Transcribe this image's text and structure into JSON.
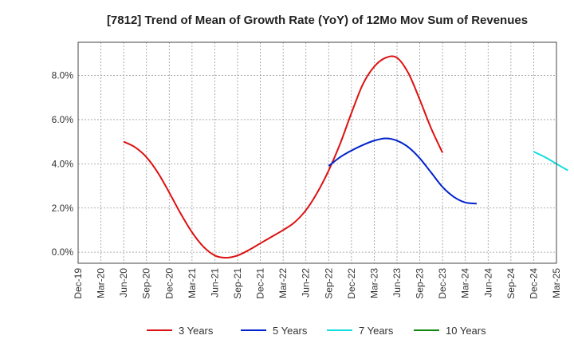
{
  "chart_data": {
    "type": "line",
    "title": "[7812]  Trend of Mean of Growth Rate (YoY) of 12Mo Mov Sum of Revenues",
    "xlabel": "",
    "ylabel": "",
    "ylim": [
      -0.5,
      9.5
    ],
    "yticks": [
      0,
      2,
      4,
      6,
      8
    ],
    "ytick_labels": [
      "0.0%",
      "2.0%",
      "4.0%",
      "6.0%",
      "8.0%"
    ],
    "x_tick_labels": [
      "Dec-19",
      "Mar-20",
      "Jun-20",
      "Sep-20",
      "Dec-20",
      "Mar-21",
      "Jun-21",
      "Sep-21",
      "Dec-21",
      "Mar-22",
      "Jun-22",
      "Sep-22",
      "Dec-22",
      "Mar-23",
      "Jun-23",
      "Sep-23",
      "Dec-23",
      "Mar-24",
      "Jun-24",
      "Sep-24",
      "Dec-24",
      "Mar-25"
    ],
    "grid": true,
    "legend_position": "bottom",
    "series": [
      {
        "name": "3 Years",
        "color": "#dd1111",
        "start_index": 2,
        "values": [
          5.0,
          4.75,
          4.3,
          3.6,
          2.7,
          1.75,
          0.9,
          0.25,
          -0.15,
          -0.25,
          -0.15,
          0.1,
          0.4,
          0.7,
          1.0,
          1.35,
          1.9,
          2.7,
          3.7,
          4.9,
          6.3,
          7.6,
          8.4,
          8.8,
          8.8,
          8.1,
          6.9,
          5.6,
          4.5
        ]
      },
      {
        "name": "5 Years",
        "color": "#0022cc",
        "start_index": 11,
        "values": [
          3.9,
          4.3,
          4.6,
          4.85,
          5.05,
          5.15,
          5.05,
          4.75,
          4.25,
          3.6,
          2.95,
          2.5,
          2.25,
          2.2
        ]
      },
      {
        "name": "7 Years",
        "color": "#11dddd",
        "start_index": 20,
        "values": [
          4.55,
          4.3,
          4.0,
          3.7
        ]
      },
      {
        "name": "10 Years",
        "color": "#118811",
        "start_index": 0,
        "values": []
      }
    ]
  }
}
